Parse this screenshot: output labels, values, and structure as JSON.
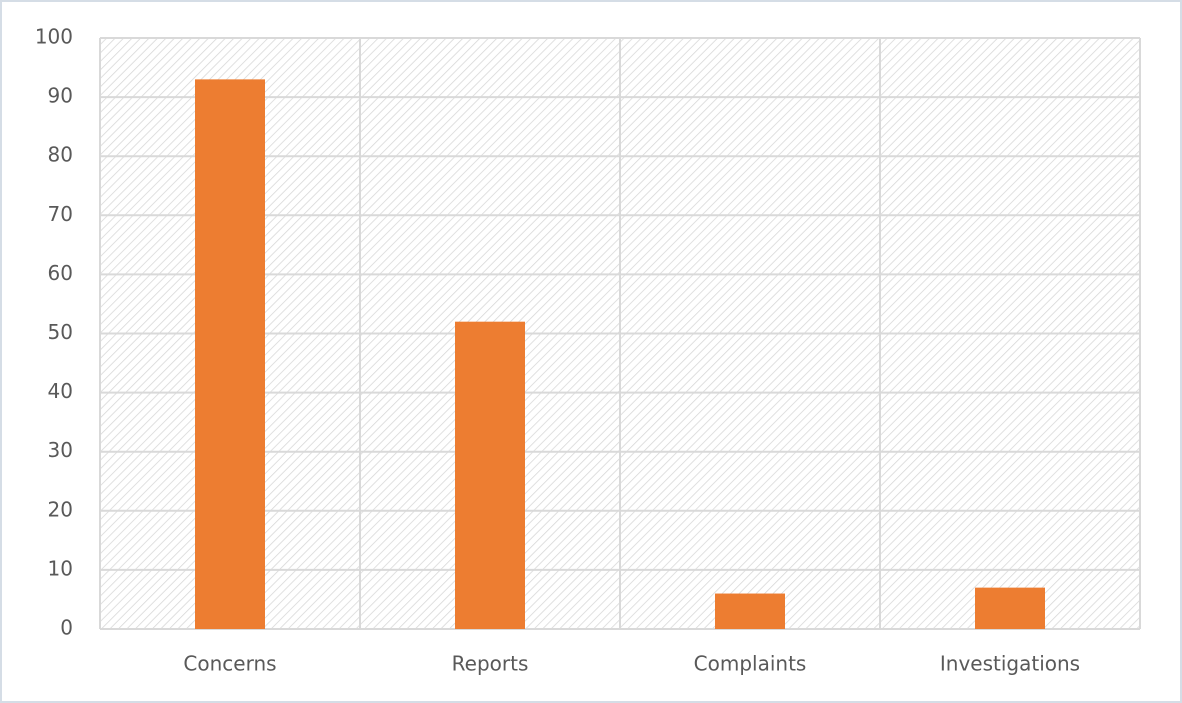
{
  "chart_data": {
    "type": "bar",
    "categories": [
      "Concerns",
      "Reports",
      "Complaints",
      "Investigations"
    ],
    "values": [
      93,
      52,
      6,
      7
    ],
    "color": "#ed7d31",
    "ylim": [
      0,
      100
    ],
    "yticks": [
      0,
      10,
      20,
      30,
      40,
      50,
      60,
      70,
      80,
      90,
      100
    ],
    "grid": true
  }
}
